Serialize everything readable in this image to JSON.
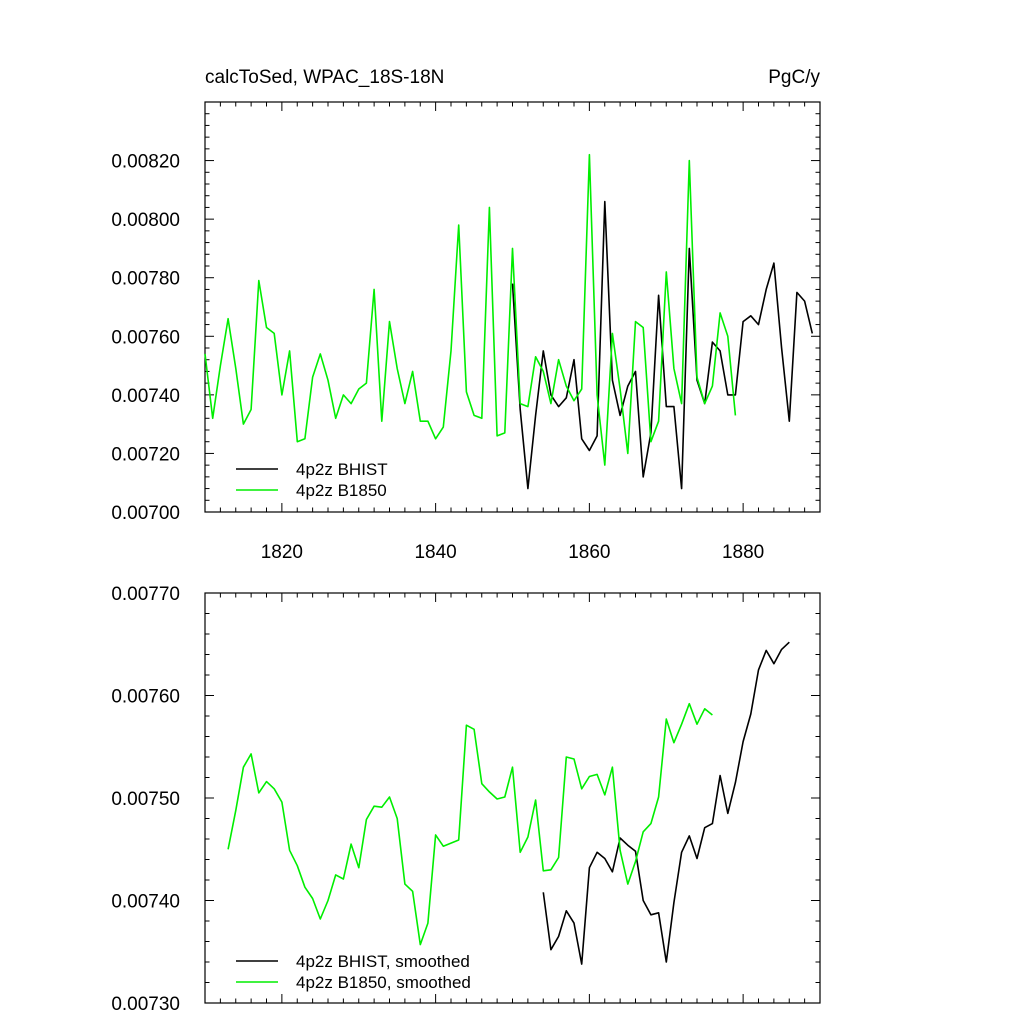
{
  "chart_data": [
    {
      "type": "line",
      "title": "calcToSed, WPAC_18S-18N",
      "title_right": "PgC/y",
      "xlabel": "",
      "ylabel": "",
      "xlim": [
        1810,
        1890
      ],
      "ylim": [
        0.007,
        0.0084
      ],
      "y_ticks": [
        "0.00700",
        "0.00720",
        "0.00740",
        "0.00760",
        "0.00780",
        "0.00800",
        "0.00820"
      ],
      "x_ticks": [
        "1820",
        "1840",
        "1860",
        "1880"
      ],
      "grid": false,
      "legend_position": "bottom-left",
      "series": [
        {
          "name": "4p2z BHIST",
          "color": "#000000",
          "x": [
            1850,
            1851,
            1852,
            1853,
            1854,
            1855,
            1856,
            1857,
            1858,
            1859,
            1860,
            1861,
            1862,
            1863,
            1864,
            1865,
            1866,
            1867,
            1868,
            1869,
            1870,
            1871,
            1872,
            1873,
            1874,
            1875,
            1876,
            1877,
            1878,
            1879,
            1880,
            1881,
            1882,
            1883,
            1884,
            1885,
            1886,
            1887,
            1888,
            1889
          ],
          "values": [
            0.00778,
            0.00735,
            0.00708,
            0.00733,
            0.00755,
            0.0074,
            0.00736,
            0.00739,
            0.00752,
            0.00725,
            0.00721,
            0.00726,
            0.00806,
            0.00745,
            0.00733,
            0.00743,
            0.00748,
            0.00712,
            0.00727,
            0.00774,
            0.00736,
            0.00736,
            0.00708,
            0.0079,
            0.00745,
            0.00737,
            0.00758,
            0.00755,
            0.0074,
            0.0074,
            0.00765,
            0.00767,
            0.00764,
            0.00776,
            0.00785,
            0.00756,
            0.00731,
            0.00775,
            0.00772,
            0.00761
          ]
        },
        {
          "name": "4p2z B1850",
          "color": "#00ee00",
          "x": [
            1810,
            1811,
            1812,
            1813,
            1814,
            1815,
            1816,
            1817,
            1818,
            1819,
            1820,
            1821,
            1822,
            1823,
            1824,
            1825,
            1826,
            1827,
            1828,
            1829,
            1830,
            1831,
            1832,
            1833,
            1834,
            1835,
            1836,
            1837,
            1838,
            1839,
            1840,
            1841,
            1842,
            1843,
            1844,
            1845,
            1846,
            1847,
            1848,
            1849,
            1850,
            1851,
            1852,
            1853,
            1854,
            1855,
            1856,
            1857,
            1858,
            1859,
            1860,
            1861,
            1862,
            1863,
            1864,
            1865,
            1866,
            1867,
            1868,
            1869,
            1870,
            1871,
            1872,
            1873,
            1874,
            1875,
            1876,
            1877,
            1878,
            1879
          ],
          "values": [
            0.00754,
            0.00732,
            0.0075,
            0.00766,
            0.00749,
            0.0073,
            0.00735,
            0.00779,
            0.00763,
            0.00761,
            0.0074,
            0.00755,
            0.00724,
            0.00725,
            0.00746,
            0.00754,
            0.00745,
            0.00732,
            0.0074,
            0.00737,
            0.00742,
            0.00744,
            0.00776,
            0.00731,
            0.00765,
            0.00749,
            0.00737,
            0.00748,
            0.00731,
            0.00731,
            0.00725,
            0.00729,
            0.00755,
            0.00798,
            0.00741,
            0.00733,
            0.00732,
            0.00804,
            0.00726,
            0.00727,
            0.0079,
            0.00737,
            0.00736,
            0.00753,
            0.00748,
            0.00737,
            0.00752,
            0.00743,
            0.00738,
            0.00742,
            0.00822,
            0.0074,
            0.00716,
            0.00761,
            0.00742,
            0.0072,
            0.00765,
            0.00763,
            0.00724,
            0.00731,
            0.00782,
            0.00749,
            0.00737,
            0.0082,
            0.00746,
            0.00737,
            0.00743,
            0.00768,
            0.0076,
            0.00733
          ]
        }
      ]
    },
    {
      "type": "line",
      "title": "",
      "xlabel": "",
      "ylabel": "",
      "xlim": [
        1810,
        1890
      ],
      "ylim": [
        0.0073,
        0.0077
      ],
      "y_ticks": [
        "0.00730",
        "0.00740",
        "0.00750",
        "0.00760",
        "0.00770"
      ],
      "grid": false,
      "legend_position": "bottom-left",
      "series": [
        {
          "name": "4p2z BHIST, smoothed",
          "color": "#000000",
          "x": [
            1854,
            1855,
            1856,
            1857,
            1858,
            1859,
            1860,
            1861,
            1862,
            1863,
            1864,
            1865,
            1866,
            1867,
            1868,
            1869,
            1870,
            1871,
            1872,
            1873,
            1874,
            1875,
            1876,
            1877,
            1878,
            1879,
            1880,
            1881,
            1882,
            1883,
            1884,
            1885,
            1886
          ],
          "values": [
            0.007408,
            0.007352,
            0.007365,
            0.00739,
            0.007378,
            0.007338,
            0.007432,
            0.007447,
            0.007441,
            0.007428,
            0.007461,
            0.007454,
            0.007448,
            0.0074,
            0.007386,
            0.007388,
            0.00734,
            0.007398,
            0.007447,
            0.007463,
            0.007441,
            0.007471,
            0.007475,
            0.007522,
            0.007485,
            0.007515,
            0.007555,
            0.007582,
            0.007625,
            0.007644,
            0.007631,
            0.007645,
            0.007652
          ]
        },
        {
          "name": "4p2z B1850, smoothed",
          "color": "#00ee00",
          "x": [
            1813,
            1814,
            1815,
            1816,
            1817,
            1818,
            1819,
            1820,
            1821,
            1822,
            1823,
            1824,
            1825,
            1826,
            1827,
            1828,
            1829,
            1830,
            1831,
            1832,
            1833,
            1834,
            1835,
            1836,
            1837,
            1838,
            1839,
            1840,
            1841,
            1842,
            1843,
            1844,
            1845,
            1846,
            1847,
            1848,
            1849,
            1850,
            1851,
            1852,
            1853,
            1854,
            1855,
            1856,
            1857,
            1858,
            1859,
            1860,
            1861,
            1862,
            1863,
            1864,
            1865,
            1866,
            1867,
            1868,
            1869,
            1870,
            1871,
            1872,
            1873,
            1874,
            1875,
            1876
          ],
          "values": [
            0.00745,
            0.007488,
            0.00753,
            0.007543,
            0.007505,
            0.007516,
            0.007509,
            0.007496,
            0.007449,
            0.007434,
            0.007413,
            0.007402,
            0.007382,
            0.0074,
            0.007425,
            0.007421,
            0.007455,
            0.007432,
            0.007479,
            0.007492,
            0.007491,
            0.007501,
            0.00748,
            0.007416,
            0.007409,
            0.007357,
            0.007378,
            0.007464,
            0.007453,
            0.007456,
            0.007459,
            0.007571,
            0.007567,
            0.007514,
            0.007506,
            0.007499,
            0.007501,
            0.00753,
            0.007447,
            0.007462,
            0.007498,
            0.007429,
            0.00743,
            0.007442,
            0.00754,
            0.007538,
            0.007509,
            0.007521,
            0.007523,
            0.007503,
            0.00753,
            0.007449,
            0.007416,
            0.007438,
            0.007467,
            0.007475,
            0.007501,
            0.007577,
            0.007554,
            0.007572,
            0.007592,
            0.007572,
            0.007587,
            0.007581
          ]
        }
      ]
    }
  ]
}
